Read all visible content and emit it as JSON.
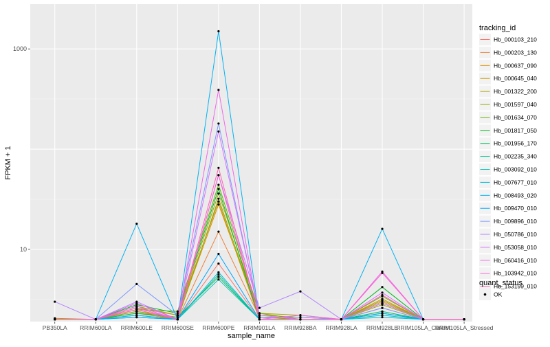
{
  "chart_data": {
    "type": "line",
    "xlabel": "sample_name",
    "ylabel": "FPKM + 1",
    "y_scale": "log10",
    "ylim": [
      1.9,
      2800
    ],
    "y_ticks": [
      10,
      1000
    ],
    "y_tick_labels": [
      "10",
      "1000"
    ],
    "grid": true,
    "legend_position": "right",
    "background": "#EBEBEB",
    "categories": [
      "PB350LA",
      "RRIM600LA",
      "RRIM600LE",
      "RRIM600SE",
      "RRIM600PE",
      "RRIM901LA",
      "RRIM928BA",
      "RRIM928LA",
      "RRIM928LE",
      "RRIM105LA_Control",
      "RRIM105LA_Stressed"
    ],
    "legend_title": "tracking_id",
    "series": [
      {
        "name": "Hb_000103_210",
        "color": "#F8766D",
        "values": [
          2.0,
          2.0,
          2.5,
          2.0,
          7.2,
          2.0,
          2.0,
          2.0,
          2.6,
          2.0,
          2.0
        ]
      },
      {
        "name": "Hb_000203_130",
        "color": "#EC8239",
        "values": [
          2.0,
          2.0,
          2.3,
          2.0,
          15.0,
          2.1,
          2.0,
          2.0,
          3.0,
          2.0,
          2.0
        ]
      },
      {
        "name": "Hb_000637_090",
        "color": "#DB8E00",
        "values": [
          2.0,
          2.0,
          2.4,
          2.1,
          28.0,
          2.2,
          2.1,
          2.0,
          3.2,
          2.0,
          2.0
        ]
      },
      {
        "name": "Hb_000645_040",
        "color": "#C79800",
        "values": [
          2.0,
          2.0,
          2.6,
          2.2,
          30.0,
          2.0,
          2.0,
          2.0,
          2.9,
          2.0,
          2.0
        ]
      },
      {
        "name": "Hb_001322_200",
        "color": "#AEA200",
        "values": [
          2.05,
          2.0,
          2.7,
          2.2,
          36.0,
          2.3,
          2.2,
          2.0,
          2.8,
          2.0,
          2.0
        ]
      },
      {
        "name": "Hb_001597_040",
        "color": "#8FAA00",
        "values": [
          2.0,
          2.0,
          2.4,
          2.0,
          32.0,
          2.1,
          2.0,
          2.0,
          3.1,
          2.0,
          2.0
        ]
      },
      {
        "name": "Hb_001634_070",
        "color": "#64B200",
        "values": [
          2.0,
          2.0,
          2.5,
          2.4,
          44.0,
          2.3,
          2.0,
          2.0,
          3.4,
          2.0,
          2.0
        ]
      },
      {
        "name": "Hb_001817_050",
        "color": "#00B81B",
        "values": [
          2.0,
          2.0,
          2.8,
          2.3,
          40.0,
          2.0,
          2.0,
          2.0,
          4.2,
          2.0,
          2.0
        ]
      },
      {
        "name": "Hb_001956_170",
        "color": "#00BD5C",
        "values": [
          2.0,
          2.0,
          2.3,
          2.1,
          5.3,
          2.0,
          2.0,
          2.0,
          2.4,
          2.0,
          2.0
        ]
      },
      {
        "name": "Hb_002235_340",
        "color": "#00C08E",
        "values": [
          2.0,
          2.0,
          2.2,
          2.0,
          5.6,
          2.0,
          2.0,
          2.0,
          2.3,
          2.0,
          2.0
        ]
      },
      {
        "name": "Hb_003092_010",
        "color": "#00C1B7",
        "values": [
          2.0,
          2.0,
          2.1,
          2.0,
          5.0,
          2.0,
          2.0,
          2.0,
          2.2,
          2.0,
          2.0
        ]
      },
      {
        "name": "Hb_007677_010",
        "color": "#00BDDC",
        "values": [
          2.0,
          2.0,
          2.2,
          2.0,
          5.9,
          2.0,
          2.0,
          2.0,
          2.1,
          2.0,
          2.0
        ]
      },
      {
        "name": "Hb_008493_020",
        "color": "#00B2F3",
        "values": [
          2.0,
          2.0,
          18.0,
          2.0,
          1500.0,
          2.0,
          2.0,
          2.0,
          16.0,
          2.0,
          2.0
        ]
      },
      {
        "name": "Hb_009470_010",
        "color": "#00A6FF",
        "values": [
          2.0,
          2.0,
          2.1,
          2.0,
          9.0,
          2.0,
          2.0,
          2.0,
          2.3,
          2.0,
          2.0
        ]
      },
      {
        "name": "Hb_009896_010",
        "color": "#7C96FF",
        "values": [
          2.0,
          2.0,
          4.5,
          2.2,
          180.0,
          2.1,
          2.1,
          2.0,
          2.6,
          2.0,
          2.0
        ]
      },
      {
        "name": "Hb_050786_010",
        "color": "#B385FF",
        "values": [
          3.0,
          2.0,
          3.0,
          2.0,
          55.0,
          2.6,
          3.8,
          2.0,
          2.9,
          2.0,
          2.0
        ]
      },
      {
        "name": "Hb_053058_010",
        "color": "#D874FD",
        "values": [
          2.0,
          2.0,
          2.7,
          2.0,
          150.0,
          2.2,
          2.0,
          2.0,
          3.7,
          2.0,
          2.0
        ]
      },
      {
        "name": "Hb_060416_010",
        "color": "#EF67EB",
        "values": [
          2.0,
          2.0,
          2.9,
          2.0,
          390.0,
          2.0,
          2.2,
          2.0,
          6.0,
          2.0,
          2.0
        ]
      },
      {
        "name": "Hb_103942_010",
        "color": "#FD61D3",
        "values": [
          2.0,
          2.0,
          2.5,
          2.0,
          55.0,
          2.0,
          2.0,
          2.0,
          5.8,
          2.0,
          2.0
        ]
      },
      {
        "name": "Hb_153199_010",
        "color": "#FF63B6",
        "values": [
          2.0,
          2.0,
          2.6,
          2.0,
          65.0,
          2.0,
          2.0,
          2.0,
          3.5,
          2.0,
          2.0
        ]
      }
    ],
    "shape_legend": {
      "title": "quant_status",
      "items": [
        "OK"
      ]
    }
  }
}
